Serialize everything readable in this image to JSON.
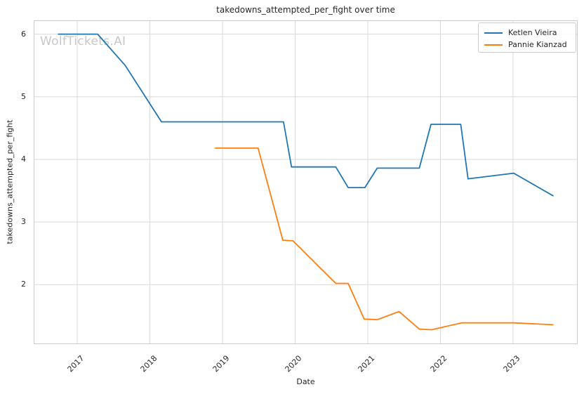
{
  "title": "takedowns_attempted_per_fight over time",
  "watermark": "WolfTickets.AI",
  "colors": {
    "series_blue": "#1f77b4",
    "series_orange": "#ff7f0e",
    "grid": "#d9d9d9",
    "spine": "#cccccc",
    "text": "#262626",
    "watermark": "#c8c8c8",
    "background": "#ffffff"
  },
  "chart_data": {
    "type": "line",
    "title": "takedowns_attempted_per_fight over time",
    "xlabel": "Date",
    "ylabel": "takedowns_attempted_per_fight",
    "xlim": [
      2016.4,
      2023.89
    ],
    "ylim": [
      1.05,
      6.22
    ],
    "xticks": [
      2017,
      2018,
      2019,
      2020,
      2021,
      2022,
      2023
    ],
    "yticks": [
      2,
      3,
      4,
      5,
      6
    ],
    "grid": true,
    "legend_position": "upper right",
    "series": [
      {
        "name": "Ketlen Vieira",
        "color": "#1f77b4",
        "x": [
          2016.74,
          2017.28,
          2017.66,
          2018.16,
          2019.84,
          2019.95,
          2020.56,
          2020.73,
          2020.96,
          2021.13,
          2021.71,
          2021.87,
          2022.28,
          2022.38,
          2023.01,
          2023.55
        ],
        "y": [
          6.0,
          6.0,
          5.5,
          4.6,
          4.6,
          3.88,
          3.88,
          3.55,
          3.55,
          3.86,
          3.86,
          4.56,
          4.56,
          3.69,
          3.78,
          3.42
        ]
      },
      {
        "name": "Pannie Kianzad",
        "color": "#ff7f0e",
        "x": [
          2018.9,
          2019.49,
          2019.83,
          2019.97,
          2020.56,
          2020.73,
          2020.95,
          2021.13,
          2021.43,
          2021.71,
          2021.88,
          2022.29,
          2023.01,
          2023.55
        ],
        "y": [
          4.18,
          4.18,
          2.71,
          2.7,
          2.02,
          2.02,
          1.45,
          1.44,
          1.57,
          1.29,
          1.28,
          1.39,
          1.39,
          1.36
        ]
      }
    ]
  }
}
